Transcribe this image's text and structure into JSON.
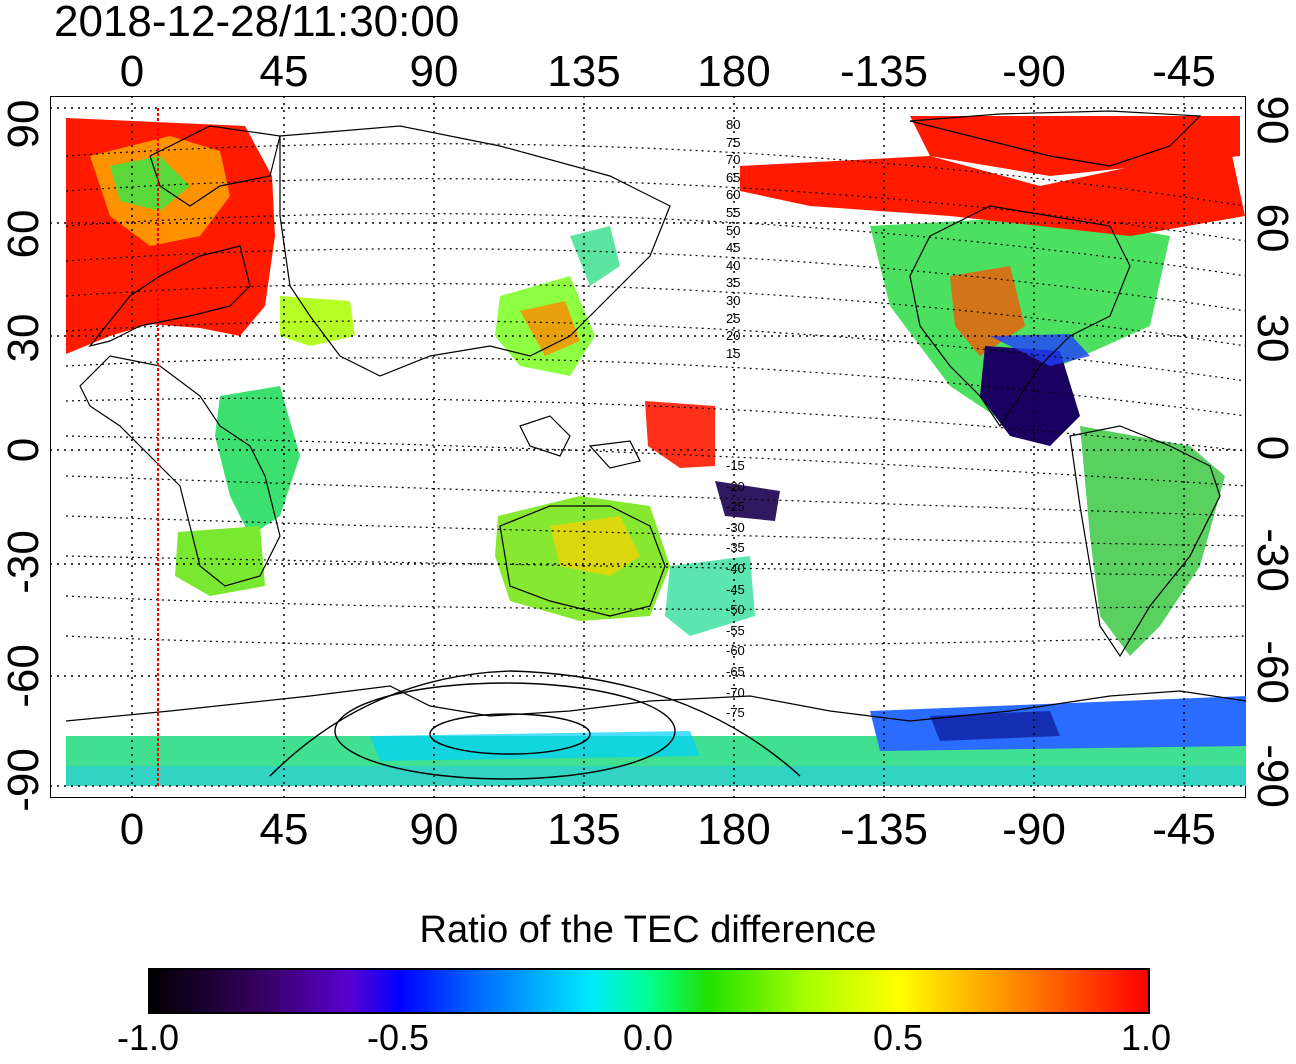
{
  "timestamp": "2018-12-28/11:30:00",
  "map": {
    "lon_ticks": [
      "0",
      "45",
      "90",
      "135",
      "180",
      "-135",
      "-90",
      "-45"
    ],
    "lat_ticks_left": [
      "90",
      "60",
      "30",
      "0",
      "-30",
      "-60",
      "-90"
    ],
    "lat_ticks_right": [
      "90",
      "60",
      "30",
      "0",
      "-30",
      "-60",
      "-90"
    ],
    "contour_labels_north": [
      "80",
      "75",
      "70",
      "65",
      "60",
      "55",
      "50",
      "45",
      "40",
      "35",
      "30",
      "25",
      "20",
      "15"
    ],
    "contour_labels_south": [
      "-15",
      "-20",
      "-25",
      "-30",
      "-35",
      "-40",
      "-45",
      "-50",
      "-55",
      "-60",
      "-65",
      "-70",
      "-75"
    ],
    "terminator_color": "#ff0000",
    "grid": "dotted"
  },
  "colorbar": {
    "title": "Ratio of the TEC difference",
    "ticks": [
      "-1.0",
      "-0.5",
      "0.0",
      "0.5",
      "1.0"
    ],
    "colors": [
      "#000000",
      "#5a00d0",
      "#0000ff",
      "#00e8ff",
      "#00ff90",
      "#22e000",
      "#a8ff00",
      "#ffff00",
      "#ff9a00",
      "#ff0000"
    ]
  }
}
